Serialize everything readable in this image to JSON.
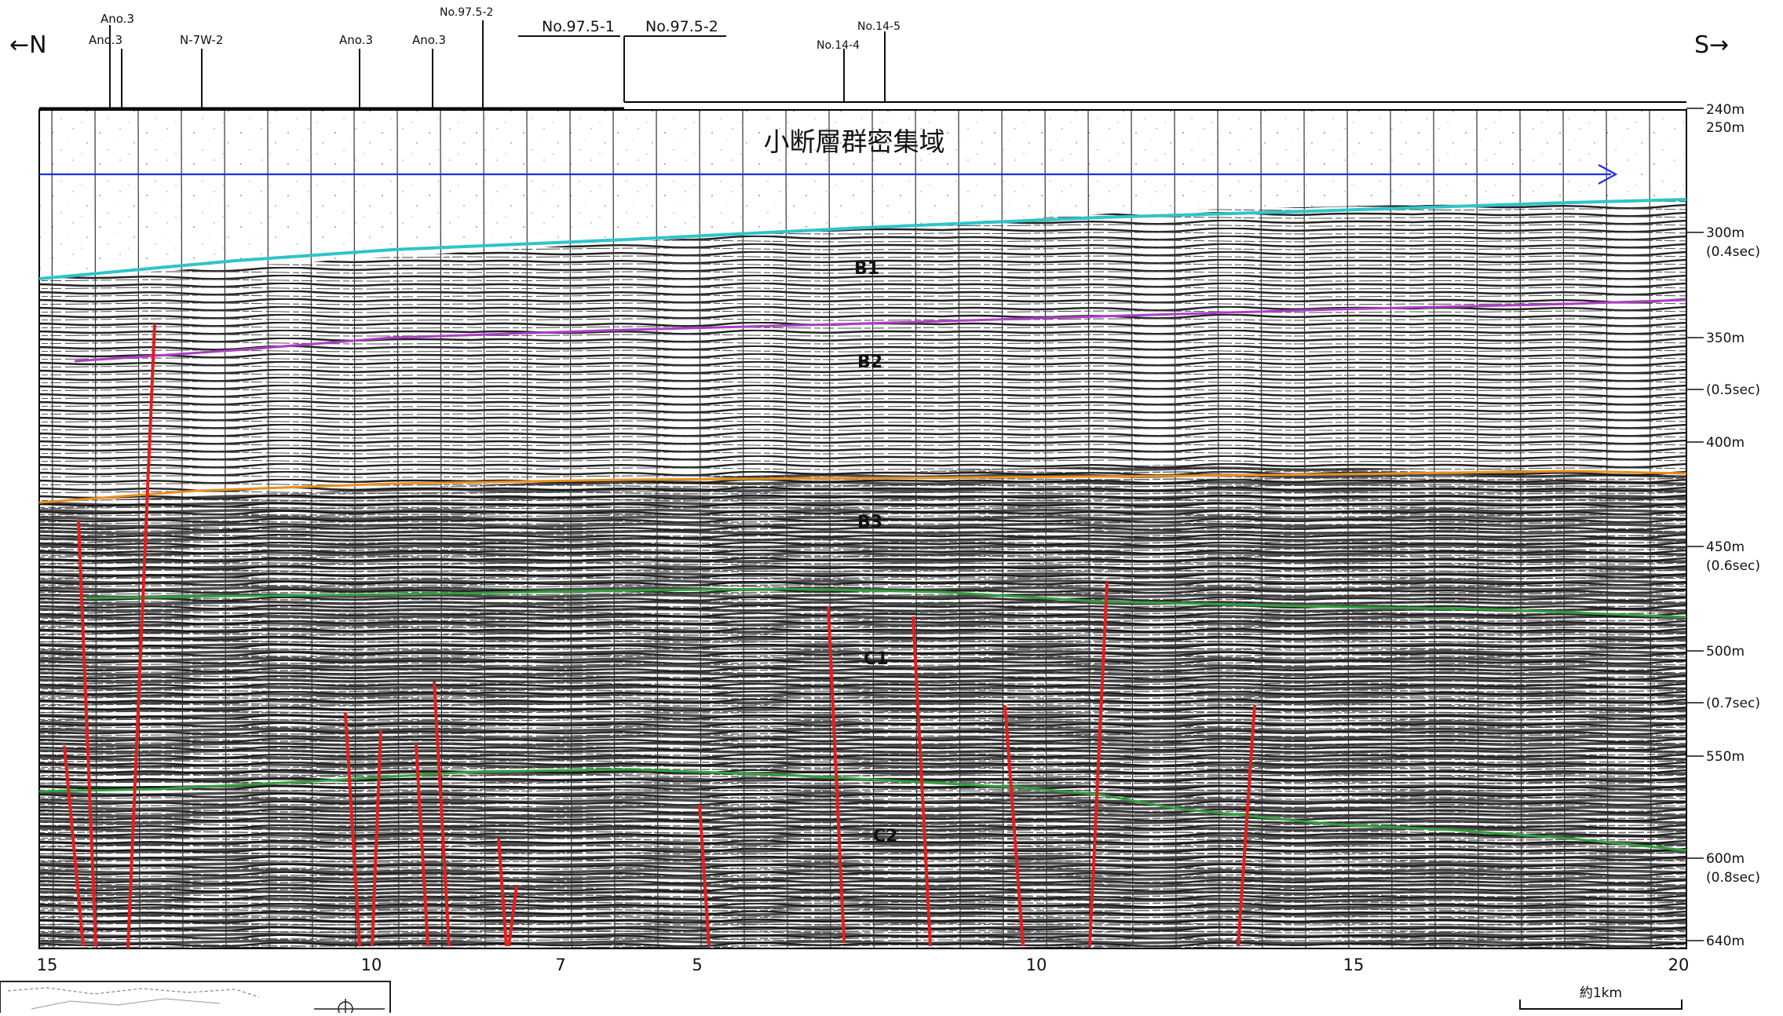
{
  "directions": {
    "north": "←N",
    "south": "S→"
  },
  "region_label": "小断層群密集域",
  "top_markers": [
    {
      "label": "Ano.3"
    },
    {
      "label": "Ano.3"
    },
    {
      "label": "N-7W-2"
    },
    {
      "label": "Ano.3"
    },
    {
      "label": "Ano.3"
    },
    {
      "label": "No.97.5-2"
    },
    {
      "label": "No.97.5-1"
    },
    {
      "label": "No.97.5-2"
    },
    {
      "label": "No.14-4"
    },
    {
      "label": "No.14-5"
    }
  ],
  "units": [
    {
      "label": "B1"
    },
    {
      "label": "B2"
    },
    {
      "label": "B3"
    },
    {
      "label": "C1"
    },
    {
      "label": "C2"
    }
  ],
  "depth_scale": [
    {
      "label": "240m"
    },
    {
      "label": "250m"
    },
    {
      "label": "300m"
    },
    {
      "label": "(0.4sec)"
    },
    {
      "label": "350m"
    },
    {
      "label": "(0.5sec)"
    },
    {
      "label": "400m"
    },
    {
      "label": "450m"
    },
    {
      "label": "(0.6sec)"
    },
    {
      "label": "500m"
    },
    {
      "label": "(0.7sec)"
    },
    {
      "label": "550m"
    },
    {
      "label": "600m"
    },
    {
      "label": "(0.8sec)"
    },
    {
      "label": "640m"
    }
  ],
  "bottom_scale": [
    {
      "label": "15"
    },
    {
      "label": "10"
    },
    {
      "label": "7"
    },
    {
      "label": "5"
    },
    {
      "label": "10"
    },
    {
      "label": "15"
    },
    {
      "label": "20"
    }
  ],
  "scale_bar": {
    "label": "約1km"
  },
  "colors": {
    "seafloor": "#2ec4c9",
    "horizon_b1_b2": "#b03cc8",
    "horizon_b2_b3": "#e8901e",
    "horizon_b3_c1": "#2ea33a",
    "horizon_c1_c2": "#2ea33a",
    "faults": "#e02020",
    "arrow": "#1f2fe0"
  }
}
